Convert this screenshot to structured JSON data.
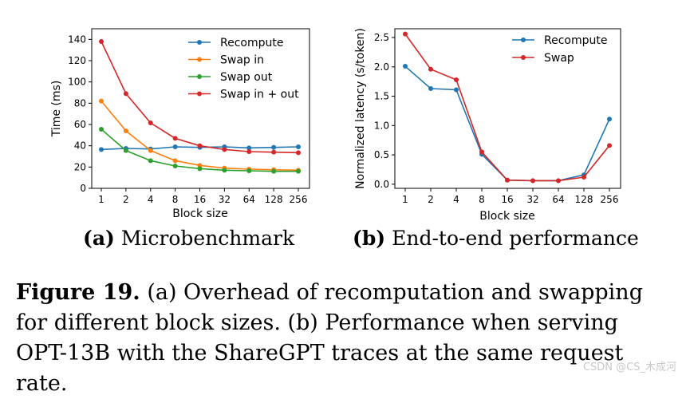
{
  "chart_data": [
    {
      "type": "line",
      "panel_tag": "(a)",
      "panel_title": "Microbenchmark",
      "xlabel": "Block size",
      "ylabel": "Time (ms)",
      "categories": [
        "1",
        "2",
        "4",
        "8",
        "16",
        "32",
        "64",
        "128",
        "256"
      ],
      "ylim": [
        0,
        150
      ],
      "yticks": [
        0,
        20,
        40,
        60,
        80,
        100,
        120,
        140
      ],
      "legend_position": "upper-right",
      "series": [
        {
          "name": "Recompute",
          "color": "#1f77b4",
          "values": [
            36.5,
            37.5,
            37,
            39,
            38.5,
            39,
            38,
            38.5,
            39
          ]
        },
        {
          "name": "Swap in",
          "color": "#ff7f0e",
          "values": [
            82,
            54,
            35.5,
            26,
            21.5,
            19,
            18,
            17.5,
            17
          ]
        },
        {
          "name": "Swap out",
          "color": "#2ca02c",
          "values": [
            55.5,
            35.5,
            26,
            21,
            18.5,
            17,
            16.5,
            16,
            16
          ]
        },
        {
          "name": "Swap in + out",
          "color": "#d62728",
          "values": [
            138,
            89,
            61.5,
            47,
            40,
            36.5,
            34.5,
            34,
            33.5
          ]
        }
      ]
    },
    {
      "type": "line",
      "panel_tag": "(b)",
      "panel_title": "End-to-end performance",
      "xlabel": "Block size",
      "ylabel": "Normalized latency (s/token)",
      "categories": [
        "1",
        "2",
        "4",
        "8",
        "16",
        "32",
        "64",
        "128",
        "256"
      ],
      "ylim": [
        -0.07,
        2.65
      ],
      "yticks": [
        "0.0",
        "0.5",
        "1.0",
        "1.5",
        "2.0",
        "2.5"
      ],
      "legend_position": "upper-right",
      "series": [
        {
          "name": "Recompute",
          "color": "#1f77b4",
          "values": [
            2.01,
            1.63,
            1.61,
            0.51,
            0.07,
            0.06,
            0.06,
            0.16,
            1.11
          ]
        },
        {
          "name": "Swap",
          "color": "#d62728",
          "values": [
            2.56,
            1.96,
            1.78,
            0.55,
            0.07,
            0.06,
            0.06,
            0.12,
            0.66
          ]
        }
      ]
    }
  ],
  "caption": {
    "label": "Figure 19.",
    "text": "(a) Overhead of recomputation and swapping for different block sizes. (b) Performance when serving OPT-13B with the ShareGPT traces at the same request rate."
  },
  "watermark": "CSDN @CS_木成河"
}
